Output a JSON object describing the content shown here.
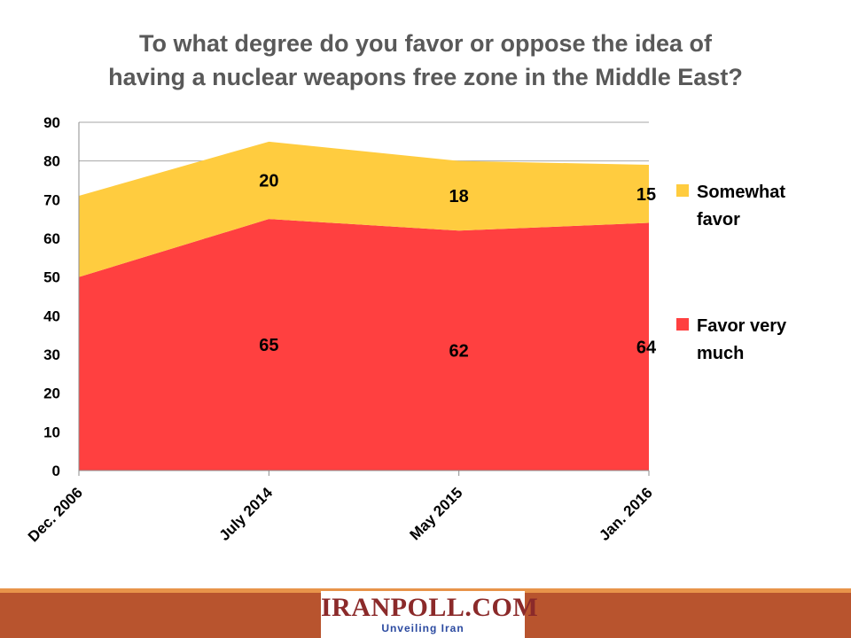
{
  "title_lines": [
    "To what degree do you favor or oppose the idea of",
    "having a nuclear weapons free zone in the Middle East?"
  ],
  "chart_data": {
    "type": "area",
    "stacked": true,
    "categories": [
      "Dec. 2006",
      "July 2014",
      "May 2015",
      "Jan. 2016"
    ],
    "series": [
      {
        "name": "Favor very much",
        "values": [
          50,
          65,
          62,
          64
        ],
        "labels": [
          "",
          "65",
          "62",
          "64"
        ],
        "color": "#ff4040"
      },
      {
        "name": "Somewhat favor",
        "values": [
          21,
          20,
          18,
          15
        ],
        "labels": [
          "",
          "20",
          "18",
          "15"
        ],
        "color": "#ffcc3f"
      }
    ],
    "ylim": [
      0,
      90
    ],
    "yticks": [
      0,
      10,
      20,
      30,
      40,
      50,
      60,
      70,
      80,
      90
    ],
    "grid": true,
    "legend": [
      {
        "series": 1,
        "lines": [
          "Somewhat",
          "favor"
        ]
      },
      {
        "series": 0,
        "lines": [
          "Favor very",
          "much"
        ]
      }
    ],
    "legend_position": "right"
  },
  "footer": {
    "logo_name": "IranPoll.com",
    "logo_name_display": "IRANPOLL.COM",
    "tagline": "Unveiling Iran",
    "band_color": "#b8542e"
  }
}
